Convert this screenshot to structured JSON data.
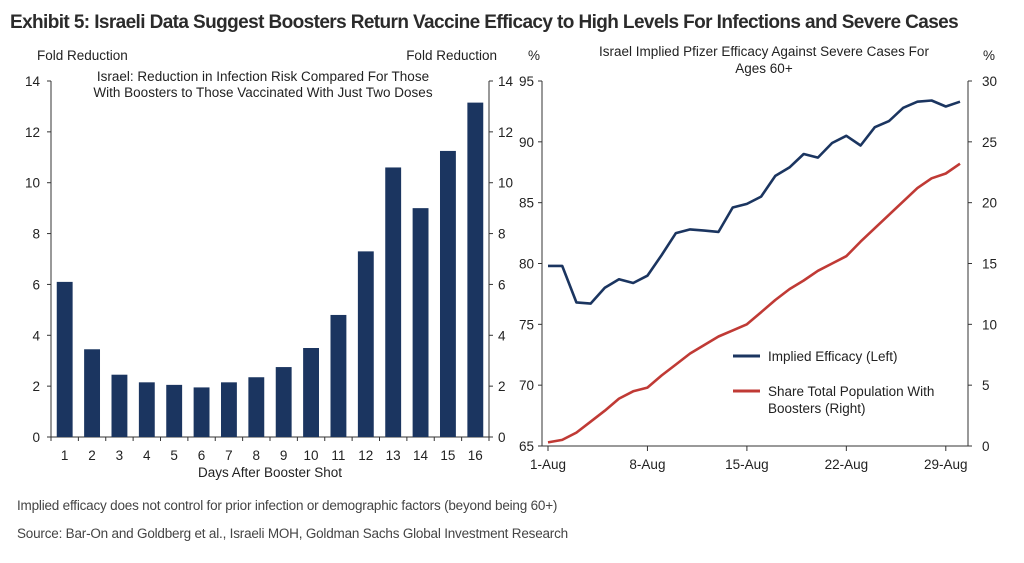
{
  "header": {
    "title": "Exhibit 5: Israeli Data Suggest Boosters Return Vaccine Efficacy to High Levels For Infections and Severe Cases"
  },
  "footer": {
    "note": "Implied efficacy does not control for prior infection or demographic factors (beyond being 60+)",
    "source": "Source: Bar-On and Goldberg et al., Israeli MOH, Goldman Sachs Global Investment Research"
  },
  "colors": {
    "bar": "#1b3560",
    "efficacy": "#1b3560",
    "boosters": "#c03a35",
    "axis": "#333333"
  },
  "chart_data": [
    {
      "type": "bar",
      "title_lines": [
        "Israel: Reduction in Infection Risk Compared For Those",
        "With Boosters to Those Vaccinated With Just Two Doses"
      ],
      "ylabel_left": "Fold Reduction",
      "ylabel_right": "Fold Reduction",
      "xlabel": "Days After Booster Shot",
      "categories": [
        "1",
        "2",
        "3",
        "4",
        "5",
        "6",
        "7",
        "8",
        "9",
        "10",
        "11",
        "12",
        "13",
        "14",
        "15",
        "16"
      ],
      "values": [
        6.1,
        3.45,
        2.45,
        2.15,
        2.05,
        1.95,
        2.15,
        2.35,
        2.75,
        3.5,
        4.8,
        7.3,
        10.6,
        9.0,
        11.25,
        13.15
      ],
      "ylim": [
        0,
        14
      ],
      "yticks": [
        0,
        2,
        4,
        6,
        8,
        10,
        12,
        14
      ],
      "grid": false
    },
    {
      "type": "line",
      "title_lines": [
        "Israel Implied Pfizer Efficacy Against Severe Cases For",
        "Ages 60+"
      ],
      "ylabel_left": "%",
      "ylabel_right": "%",
      "x_ticks": [
        "1-Aug",
        "8-Aug",
        "15-Aug",
        "22-Aug",
        "29-Aug"
      ],
      "x_tick_days": [
        1,
        8,
        15,
        22,
        29
      ],
      "xlim": [
        1,
        30
      ],
      "ylim_left": [
        65,
        95
      ],
      "yticks_left": [
        65,
        70,
        75,
        80,
        85,
        90,
        95
      ],
      "ylim_right": [
        0,
        30
      ],
      "yticks_right": [
        0,
        5,
        10,
        15,
        20,
        25,
        30
      ],
      "legend_position": "center-right",
      "grid": false,
      "series": [
        {
          "name": "Implied Efficacy (Left)",
          "axis": "left",
          "x": [
            1,
            2,
            3,
            4,
            5,
            6,
            7,
            8,
            9,
            10,
            11,
            12,
            13,
            14,
            15,
            16,
            17,
            18,
            19,
            20,
            21,
            22,
            23,
            24,
            25,
            26,
            27,
            28,
            29,
            30
          ],
          "values": [
            79.8,
            79.8,
            76.8,
            76.7,
            78.0,
            78.7,
            78.4,
            79.0,
            80.7,
            82.5,
            82.8,
            82.7,
            82.6,
            84.6,
            84.9,
            85.5,
            87.2,
            87.9,
            89.0,
            88.7,
            89.9,
            90.5,
            89.7,
            91.2,
            91.7,
            92.8,
            93.3,
            93.4,
            92.9,
            93.3
          ]
        },
        {
          "name": "Share Total Population With Boosters (Right)",
          "axis": "right",
          "x": [
            1,
            2,
            3,
            4,
            5,
            6,
            7,
            8,
            9,
            10,
            11,
            12,
            13,
            14,
            15,
            16,
            17,
            18,
            19,
            20,
            21,
            22,
            23,
            24,
            25,
            26,
            27,
            28,
            29,
            30
          ],
          "values": [
            0.3,
            0.5,
            1.1,
            2.0,
            2.9,
            3.9,
            4.5,
            4.8,
            5.8,
            6.7,
            7.6,
            8.3,
            9.0,
            9.5,
            10.0,
            11.0,
            12.0,
            12.9,
            13.6,
            14.4,
            15.0,
            15.6,
            16.8,
            17.9,
            19.0,
            20.1,
            21.2,
            22.0,
            22.4,
            23.2
          ]
        }
      ]
    }
  ]
}
